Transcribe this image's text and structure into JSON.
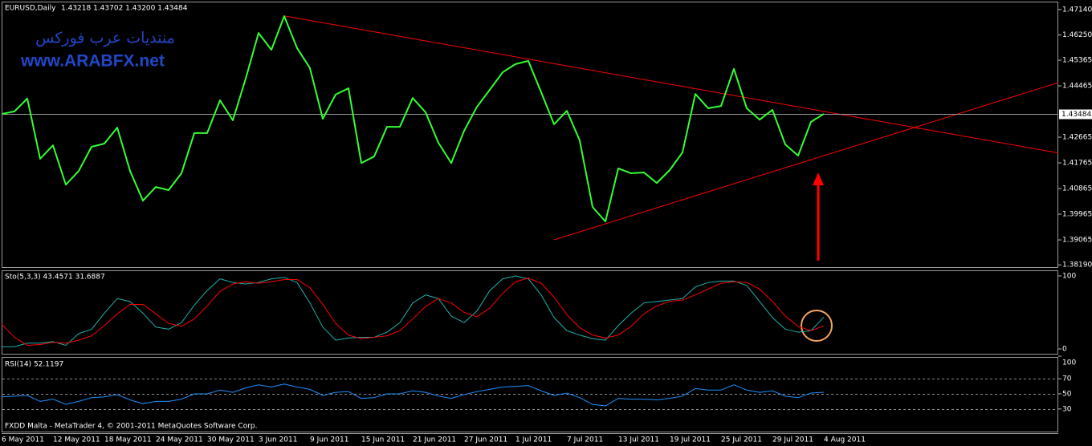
{
  "watermark": {
    "line1": "منتديات عرب فوركس",
    "line2": "www.ARABFX.net"
  },
  "footer": "FXDD Malta - MetaTrader 4, © 2001-2011 MetaQuotes Software Corp.",
  "chart_data": [
    {
      "type": "line",
      "title": "EURUSD,Daily",
      "subtitle": "1.43218 1.43702 1.43200 1.43484",
      "categories": [
        "6 May 2011",
        null,
        null,
        null,
        "12 May 2011",
        null,
        null,
        null,
        "18 May 2011",
        null,
        null,
        null,
        "24 May 2011",
        null,
        null,
        null,
        "30 May 2011",
        null,
        null,
        null,
        "3 Jun 2011",
        null,
        null,
        null,
        "9 Jun 2011",
        null,
        null,
        null,
        "15 Jun 2011",
        null,
        null,
        null,
        "21 Jun 2011",
        null,
        null,
        null,
        "27 Jun 2011",
        null,
        null,
        null,
        "1 Jul 2011",
        null,
        null,
        null,
        "7 Jul 2011",
        null,
        null,
        null,
        "13 Jul 2011",
        null,
        null,
        null,
        "19 Jul 2011",
        null,
        null,
        null,
        "25 Jul 2011",
        null,
        null,
        null,
        "29 Jul 2011",
        null,
        null,
        null,
        "4 Aug 2011"
      ],
      "values": [
        1.4348,
        1.4357,
        1.4402,
        1.4191,
        1.4238,
        1.41,
        1.4148,
        1.4233,
        1.4244,
        1.43,
        1.4148,
        1.4044,
        1.4092,
        1.4081,
        1.414,
        1.4281,
        1.4281,
        1.4396,
        1.4326,
        1.4472,
        1.4632,
        1.4573,
        1.4691,
        1.4579,
        1.4509,
        1.4331,
        1.4416,
        1.4438,
        1.4176,
        1.4199,
        1.4303,
        1.4303,
        1.4404,
        1.4354,
        1.4247,
        1.4176,
        1.4289,
        1.4373,
        1.4433,
        1.4494,
        1.4523,
        1.4534,
        1.4424,
        1.4312,
        1.4359,
        1.4255,
        1.4022,
        1.3971,
        1.4157,
        1.414,
        1.4143,
        1.4106,
        1.4151,
        1.4213,
        1.4418,
        1.4368,
        1.4376,
        1.4506,
        1.4368,
        1.4328,
        1.4362,
        1.4241,
        1.4202,
        1.432,
        1.43484
      ],
      "color": "#33ff33",
      "last_price": 1.43484,
      "ylim": [
        1.3811,
        1.4742
      ],
      "yticks": [
        {
          "value": 1.4714,
          "label": "1.47140"
        },
        {
          "value": 1.4625,
          "label": "1.46250"
        },
        1.45365,
        1.44465,
        1.42665,
        1.41765,
        1.40865,
        1.39965,
        1.39065,
        {
          "value": 1.3819,
          "label": "1.38190"
        }
      ]
    },
    {
      "type": "line",
      "title": "Sto(5,3,3) 43.4571 31.6887",
      "series": [
        {
          "color": "#20b2aa",
          "values": [
            3,
            3,
            8,
            8,
            10,
            5,
            21,
            27,
            49,
            69,
            65,
            49,
            30,
            27,
            36,
            60,
            80,
            96,
            91,
            89,
            91,
            96,
            98,
            91,
            63,
            30,
            12,
            15,
            16,
            16,
            23,
            36,
            63,
            74,
            69,
            45,
            36,
            52,
            80,
            96,
            100,
            96,
            74,
            43,
            25,
            19,
            14,
            12,
            32,
            49,
            63,
            65,
            67,
            69,
            85,
            91,
            93,
            93,
            87,
            65,
            43,
            27,
            23,
            25,
            43.4571
          ]
        },
        {
          "color": "#ff0000",
          "values": [
            34,
            16,
            5,
            6,
            9,
            8,
            12,
            18,
            32,
            48,
            61,
            61,
            48,
            35,
            31,
            41,
            59,
            79,
            89,
            92,
            90,
            92,
            95,
            95,
            84,
            61,
            35,
            19,
            14,
            16,
            18,
            25,
            41,
            58,
            69,
            63,
            50,
            44,
            56,
            76,
            92,
            97,
            90,
            71,
            47,
            29,
            19,
            15,
            19,
            31,
            48,
            59,
            65,
            67,
            74,
            82,
            90,
            92,
            91,
            82,
            65,
            45,
            31,
            25,
            31.6887
          ]
        }
      ],
      "ylim": [
        0,
        100
      ],
      "yticks": [
        100,
        0
      ]
    },
    {
      "type": "line",
      "title": "RSI(14) 52.1197",
      "series": [
        {
          "color": "#1e90ff",
          "values": [
            46,
            47,
            48,
            40,
            43,
            36,
            40,
            45,
            46,
            49,
            42,
            37,
            40,
            40,
            43,
            50,
            50,
            55,
            52,
            58,
            62,
            59,
            63,
            59,
            56,
            48,
            52,
            53,
            44,
            45,
            50,
            50,
            54,
            52,
            47,
            44,
            49,
            53,
            56,
            59,
            60,
            61,
            54,
            48,
            51,
            45,
            36,
            34,
            44,
            43,
            43,
            42,
            44,
            47,
            57,
            55,
            55,
            62,
            55,
            52,
            54,
            47,
            45,
            51,
            52.1197
          ]
        }
      ],
      "ylim": [
        0,
        100
      ],
      "yticks": [
        100,
        70,
        50,
        30
      ],
      "levels": [
        70,
        50,
        30
      ]
    }
  ]
}
